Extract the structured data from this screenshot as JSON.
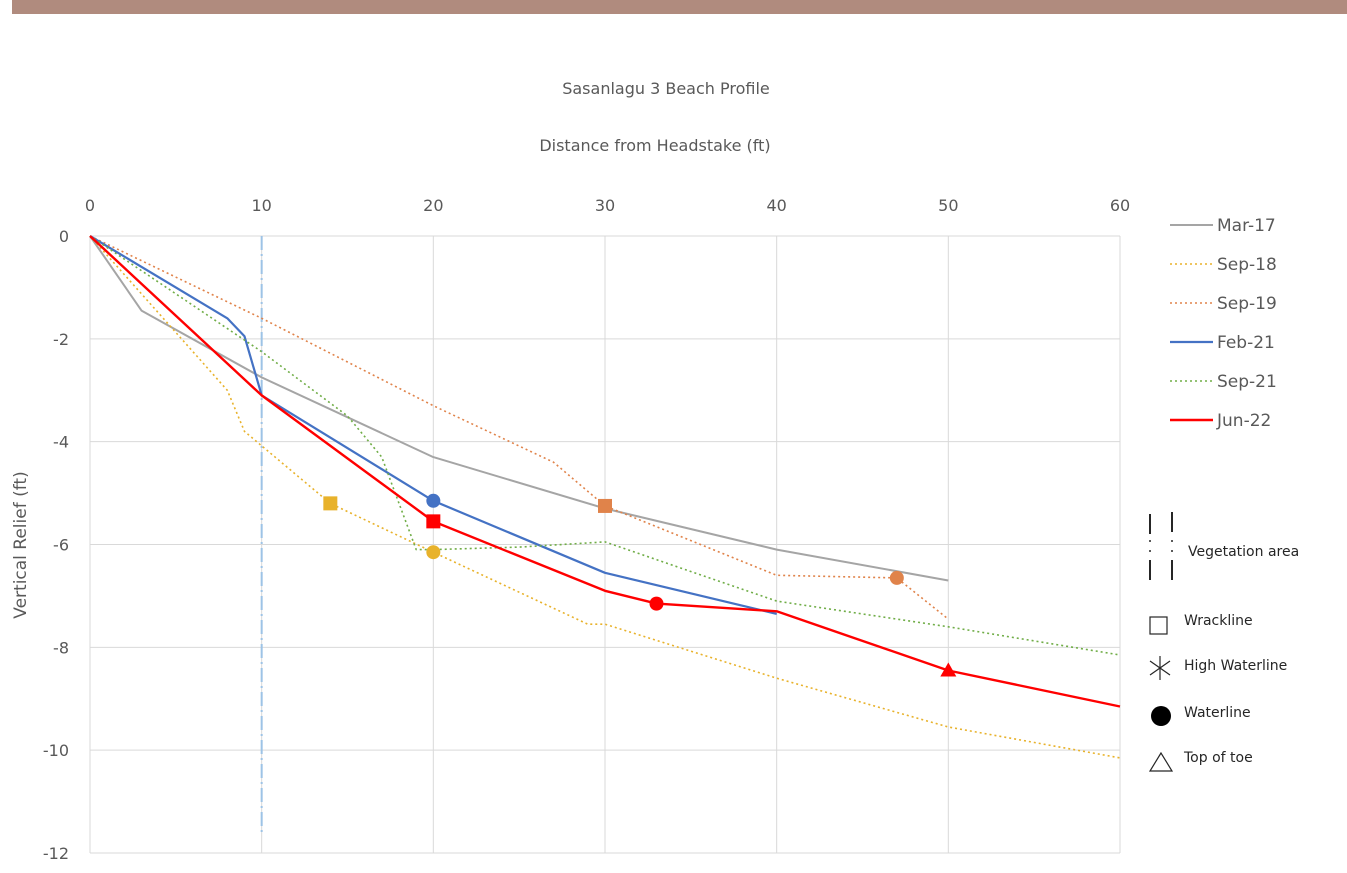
{
  "chart_data": {
    "type": "line",
    "title": "Sasanlagu 3 Beach Profile",
    "xlabel": "Distance from Headstake (ft)",
    "ylabel": "Vertical Relief  (ft)",
    "x_axis_position": "top",
    "xlim": [
      0,
      60
    ],
    "ylim": [
      -12,
      0
    ],
    "xticks": [
      0,
      10,
      20,
      30,
      40,
      50,
      60
    ],
    "yticks": [
      0,
      -2,
      -4,
      -6,
      -8,
      -10,
      -12
    ],
    "grid": true,
    "legend_position": "right",
    "series": [
      {
        "name": "Mar-17",
        "color": "#a5a5a5",
        "dash": "solid",
        "width": 2,
        "points": [
          [
            0,
            0
          ],
          [
            3,
            -1.45
          ],
          [
            10,
            -2.75
          ],
          [
            20,
            -4.3
          ],
          [
            30,
            -5.3
          ],
          [
            40,
            -6.1
          ],
          [
            50,
            -6.7
          ]
        ]
      },
      {
        "name": "Sep-18",
        "color": "#e8b22b",
        "dash": "dotted",
        "width": 1.6,
        "points": [
          [
            0,
            0
          ],
          [
            8,
            -3
          ],
          [
            9,
            -3.8
          ],
          [
            14,
            -5.2
          ],
          [
            20,
            -6.15
          ],
          [
            29,
            -7.55
          ],
          [
            30,
            -7.55
          ],
          [
            40,
            -8.6
          ],
          [
            50,
            -9.55
          ],
          [
            60,
            -10.15
          ]
        ]
      },
      {
        "name": "Sep-19",
        "color": "#e0834a",
        "dash": "dotted",
        "width": 1.6,
        "points": [
          [
            0,
            0
          ],
          [
            10,
            -1.6
          ],
          [
            20,
            -3.3
          ],
          [
            27,
            -4.4
          ],
          [
            30,
            -5.25
          ],
          [
            40,
            -6.6
          ],
          [
            47,
            -6.65
          ],
          [
            50,
            -7.45
          ]
        ]
      },
      {
        "name": "Feb-21",
        "color": "#4472c4",
        "dash": "solid",
        "width": 2.2,
        "points": [
          [
            0,
            0
          ],
          [
            8,
            -1.6
          ],
          [
            9,
            -1.95
          ],
          [
            10,
            -3.1
          ],
          [
            20,
            -5.15
          ],
          [
            30,
            -6.55
          ],
          [
            40,
            -7.35
          ]
        ]
      },
      {
        "name": "Sep-21",
        "color": "#70ad47",
        "dash": "dotted",
        "width": 1.6,
        "points": [
          [
            0,
            0
          ],
          [
            10,
            -2.25
          ],
          [
            15,
            -3.5
          ],
          [
            17,
            -4.3
          ],
          [
            19,
            -6.1
          ],
          [
            20,
            -6.1
          ],
          [
            25,
            -6.05
          ],
          [
            30,
            -5.95
          ],
          [
            40,
            -7.1
          ],
          [
            50,
            -7.6
          ],
          [
            60,
            -8.15
          ]
        ]
      },
      {
        "name": "Jun-22",
        "color": "#ff0000",
        "dash": "solid",
        "width": 2.4,
        "points": [
          [
            0,
            0
          ],
          [
            10,
            -3.1
          ],
          [
            20,
            -5.55
          ],
          [
            30,
            -6.9
          ],
          [
            33,
            -7.15
          ],
          [
            40,
            -7.3
          ],
          [
            50,
            -8.45
          ],
          [
            60,
            -9.15
          ]
        ]
      }
    ],
    "vertical_reference": {
      "x": 10,
      "y_range": [
        0,
        -11.6
      ],
      "color": "#9dc3e6",
      "meaning": "Vegetation area"
    },
    "markers": [
      {
        "series": "Sep-18",
        "shape": "square",
        "x": 14,
        "y": -5.2,
        "color": "#e8b22b"
      },
      {
        "series": "Sep-18",
        "shape": "circle",
        "x": 20,
        "y": -6.15,
        "color": "#e8b22b"
      },
      {
        "series": "Feb-21",
        "shape": "circle",
        "x": 20,
        "y": -5.15,
        "color": "#4472c4"
      },
      {
        "series": "Jun-22",
        "shape": "square",
        "x": 20,
        "y": -5.55,
        "color": "#ff0000"
      },
      {
        "series": "Sep-19",
        "shape": "square",
        "x": 30,
        "y": -5.25,
        "color": "#e0834a"
      },
      {
        "series": "Jun-22",
        "shape": "circle",
        "x": 33,
        "y": -7.15,
        "color": "#ff0000"
      },
      {
        "series": "Sep-19",
        "shape": "circle",
        "x": 47,
        "y": -6.65,
        "color": "#e0834a"
      },
      {
        "series": "Jun-22",
        "shape": "triangle",
        "x": 50,
        "y": -8.45,
        "color": "#ff0000"
      }
    ],
    "marker_legend": [
      {
        "label": "Vegetation area",
        "symbol": "vertical-dash"
      },
      {
        "label": "Wrackline",
        "symbol": "square-outline"
      },
      {
        "label": "High Waterline",
        "symbol": "asterisk"
      },
      {
        "label": "Waterline",
        "symbol": "filled-circle"
      },
      {
        "label": "Top of toe",
        "symbol": "triangle-outline"
      }
    ]
  }
}
